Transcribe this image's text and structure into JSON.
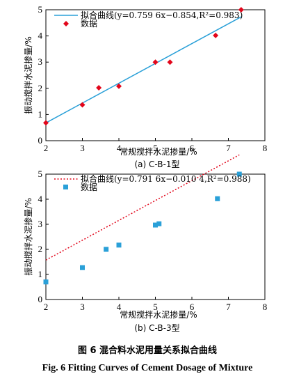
{
  "chart_data": [
    {
      "type": "scatter",
      "subtitle": "(a)  C-B-1型",
      "xlabel": "常规搅拌水泥掺量/%",
      "ylabel": "振动搅拌水泥掺量/%",
      "xlim": [
        2,
        8
      ],
      "ylim": [
        0,
        5
      ],
      "xticks": [
        2,
        3,
        4,
        5,
        6,
        7,
        8
      ],
      "yticks": [
        0,
        1,
        2,
        3,
        4,
        5
      ],
      "grid": false,
      "legend_position": "top-left",
      "fit_legend": "拟合曲线(y=0.759 6x−0.854,R²=0.983)",
      "points_legend": "数据",
      "fit_line_style": "solid",
      "fit_color": "#2aa0d8",
      "point_color": "#e2061b",
      "marker": "diamond",
      "fit": {
        "slope": 0.7596,
        "intercept": -0.854
      },
      "x": [
        2.0,
        3.0,
        3.45,
        4.0,
        5.0,
        5.4,
        6.65,
        7.35
      ],
      "y": [
        0.68,
        1.37,
        2.02,
        2.08,
        3.0,
        3.0,
        4.02,
        5.0
      ]
    },
    {
      "type": "scatter",
      "subtitle": "(b)  C-B-3型",
      "xlabel": "常规搅拌水泥掺量/%",
      "ylabel": "振动搅拌水泥掺量/%",
      "xlim": [
        2,
        8
      ],
      "ylim": [
        0,
        5
      ],
      "xticks": [
        2,
        3,
        4,
        5,
        6,
        7,
        8
      ],
      "yticks": [
        0,
        1,
        2,
        3,
        4,
        5
      ],
      "grid": false,
      "legend_position": "top-left",
      "fit_legend": "拟合曲线(y=0.791 6x−0.010 4,R²=0.988)",
      "points_legend": "数据",
      "fit_line_style": "dotted",
      "fit_color": "#e2061b",
      "point_color": "#2aa0d8",
      "marker": "square",
      "fit": {
        "slope": 0.7916,
        "intercept": -0.0104
      },
      "x": [
        2.0,
        3.0,
        3.65,
        4.0,
        5.0,
        5.1,
        6.7,
        7.3
      ],
      "y": [
        0.7,
        1.27,
        2.0,
        2.17,
        2.97,
        3.02,
        4.02,
        5.0
      ]
    }
  ],
  "caption": {
    "cn": "图 6    混合料水泥用量关系拟合曲线",
    "en": "Fig. 6    Fitting Curves of Cement Dosage of Mixture"
  }
}
